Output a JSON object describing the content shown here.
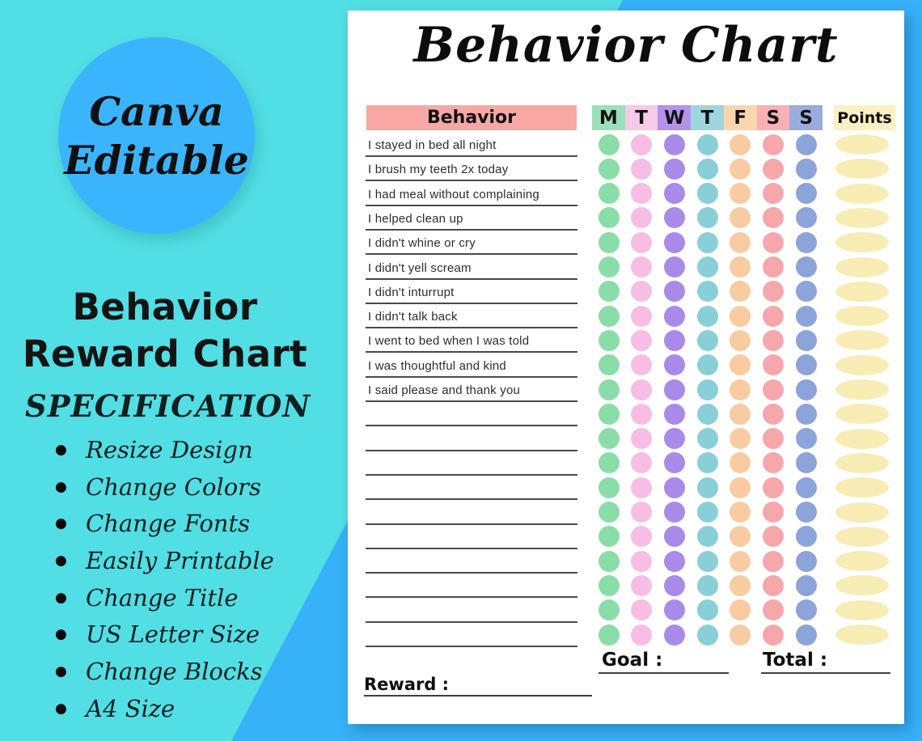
{
  "left_panel": {
    "badge_line1": "Canva",
    "badge_line2": "Editable",
    "title_line1": "Behavior",
    "title_line2": "Reward Chart",
    "spec_heading": "SPECIFICATION",
    "spec_items": [
      "Resize Design",
      "Change Colors",
      "Change Fonts",
      "Easily Printable",
      "Change Title",
      "US Letter Size",
      "Change Blocks",
      "A4 Size"
    ]
  },
  "page": {
    "title": "Behavior Chart",
    "table": {
      "behavior_header": "Behavior",
      "points_header": "Points",
      "days": [
        {
          "label": "M",
          "header_color": "#9CDFBB",
          "dot_color": "#8ADDA8"
        },
        {
          "label": "T",
          "header_color": "#F9C9E9",
          "dot_color": "#F7BDE4"
        },
        {
          "label": "W",
          "header_color": "#B293EC",
          "dot_color": "#AA8AE9"
        },
        {
          "label": "T",
          "header_color": "#9DD6DD",
          "dot_color": "#89CFD8"
        },
        {
          "label": "F",
          "header_color": "#FBD5AF",
          "dot_color": "#F9CBA1"
        },
        {
          "label": "S",
          "header_color": "#F8B0B4",
          "dot_color": "#F6A7AB"
        },
        {
          "label": "S",
          "header_color": "#98ADDE",
          "dot_color": "#8CA4D9"
        }
      ],
      "behaviors": [
        "I stayed in bed all night",
        "I brush my teeth 2x today",
        "I had meal without complaining",
        "I helped clean up",
        "I didn't whine or cry",
        "I didn't yell scream",
        "I didn't inturrupt",
        "I didn't talk back",
        "I went to bed when I was told",
        "I was thoughtful and kind",
        "I said please and thank you"
      ],
      "empty_row_count": 10
    },
    "footer": {
      "goal_label": "Goal :",
      "total_label": "Total :",
      "reward_label": "Reward :"
    }
  },
  "colors": {
    "background_teal": "#51DEE4",
    "accent_blue": "#37B1F8",
    "badge_circle_blue": "#3AB5FD",
    "behavior_header_bg": "#F7A8A4",
    "points_header_bg": "#FAF0C4",
    "points_oval": "#F8ECB5"
  }
}
